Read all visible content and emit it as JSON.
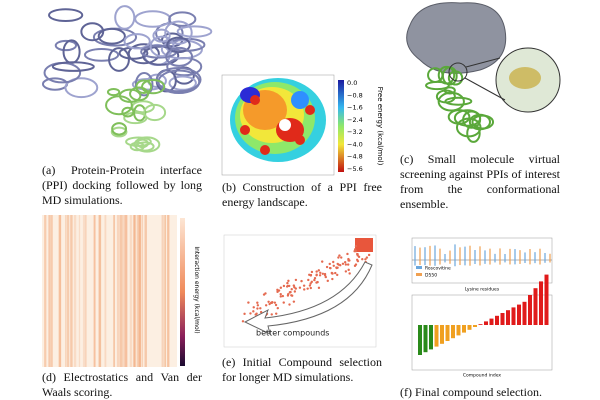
{
  "panels": [
    {
      "caption": "(a) Protein-Protein interface (PPI) docking followed by long MD simulations."
    },
    {
      "caption": "(b) Construction of a PPI free energy landscape.",
      "colorbar_title": "Free energy (kcal/mol)",
      "colorbar_ticks": [
        "0.0",
        "−0.8",
        "−1.6",
        "−2.4",
        "−3.2",
        "−4.0",
        "−4.8",
        "−5.6"
      ]
    },
    {
      "caption": "(c) Small molecule virtual screening against PPIs of interest from the conformational ensemble."
    },
    {
      "caption": "(d) Electrostatics and Van der Waals scoring.",
      "colorbar_title": "Interaction energy (kcal/mol)"
    },
    {
      "caption": "(e) Initial Compound selection for longer MD simulations.",
      "annotation": "better compounds"
    },
    {
      "caption": "(f) Final compound selection.",
      "legend": [
        "Roscovitine",
        "D550"
      ],
      "xlabel_top": "Lysine residues",
      "xlabel_bottom": "Compound index"
    }
  ]
}
